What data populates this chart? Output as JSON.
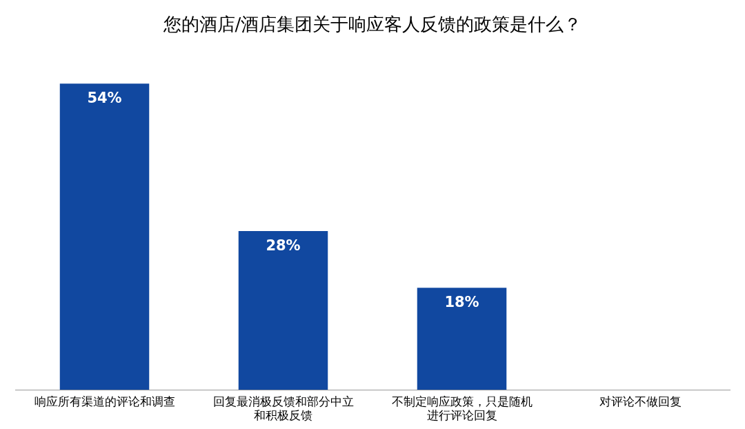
{
  "chart_data": {
    "type": "bar",
    "title": "您的酒店/酒店集团关于响应客人反馈的政策是什么？",
    "categories": [
      "响应所有渠道的评论和调查",
      "回复最消极反馈和部分中立和积极反馈",
      "不制定响应政策，只是随机进行评论回复",
      "对评论不做回复"
    ],
    "values": [
      54,
      28,
      18,
      0
    ],
    "value_labels": [
      "54%",
      "28%",
      "18%",
      null
    ],
    "color": "#1148a0",
    "grid": false,
    "legend": false
  }
}
